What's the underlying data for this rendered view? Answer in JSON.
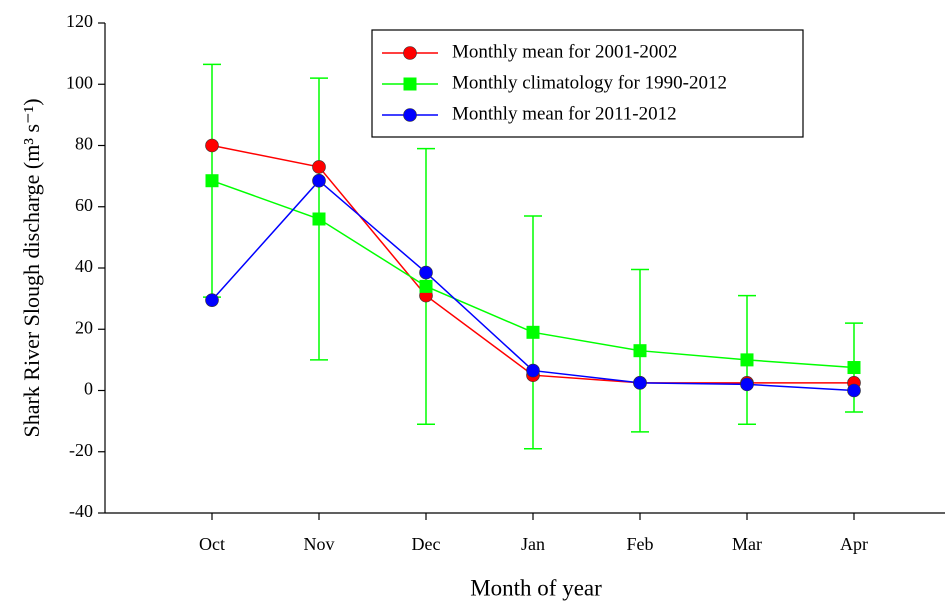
{
  "chart_data": {
    "type": "line",
    "xlabel": "Month of year",
    "ylabel": "Shark River Slough discharge (m³ s⁻¹)",
    "categories": [
      "Oct",
      "Nov",
      "Dec",
      "Jan",
      "Feb",
      "Mar",
      "Apr"
    ],
    "ylim": [
      -40,
      120
    ],
    "yticks": [
      -40,
      -20,
      0,
      20,
      40,
      60,
      80,
      100,
      120
    ],
    "legend": "upper right",
    "series": [
      {
        "name": "Monthly mean for 2001-2002",
        "color": "#ff0000",
        "marker": "circle",
        "values": [
          80,
          73,
          31,
          5,
          2.5,
          2.5,
          2.5
        ]
      },
      {
        "name": "Monthly climatology for 1990-2012",
        "color": "#00ff00",
        "marker": "square",
        "values": [
          68.5,
          56,
          34,
          19,
          13,
          10,
          7.5
        ],
        "errors": [
          38,
          46,
          45,
          38,
          26.5,
          21,
          14.5
        ]
      },
      {
        "name": "Monthly mean for 2011-2012",
        "color": "#0000ff",
        "marker": "circle",
        "values": [
          29.5,
          68.5,
          38.5,
          6.5,
          2.5,
          2,
          0
        ]
      }
    ]
  }
}
